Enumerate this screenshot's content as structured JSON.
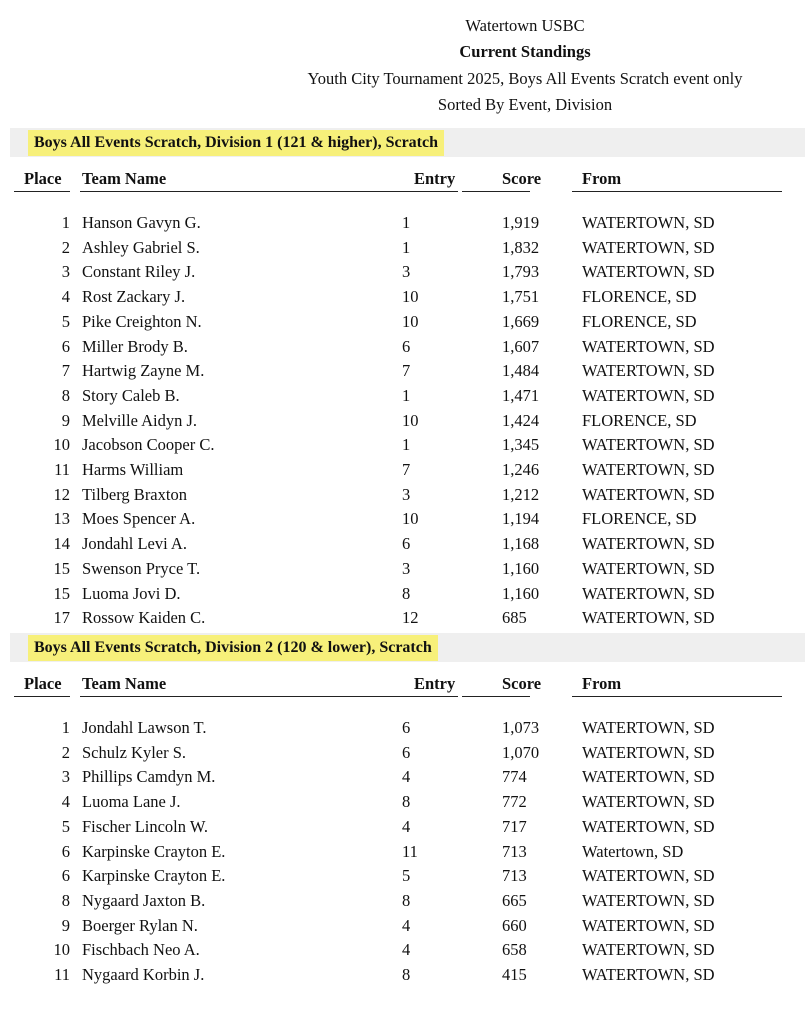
{
  "header": {
    "org": "Watertown USBC",
    "title": "Current Standings",
    "subtitle": "Youth City Tournament 2025, Boys All Events Scratch event only",
    "sort": "Sorted By Event, Division"
  },
  "columns": {
    "place": "Place",
    "name": "Team Name",
    "entry": "Entry",
    "score": "Score",
    "from": "From"
  },
  "divisions": [
    {
      "title": "Boys All Events Scratch, Division 1 (121 & higher), Scratch",
      "rows": [
        [
          "1",
          "Hanson Gavyn G.",
          "1",
          "1,919",
          "WATERTOWN, SD"
        ],
        [
          "2",
          "Ashley Gabriel S.",
          "1",
          "1,832",
          "WATERTOWN, SD"
        ],
        [
          "3",
          "Constant Riley J.",
          "3",
          "1,793",
          "WATERTOWN, SD"
        ],
        [
          "4",
          "Rost Zackary J.",
          "10",
          "1,751",
          "FLORENCE, SD"
        ],
        [
          "5",
          "Pike Creighton N.",
          "10",
          "1,669",
          "FLORENCE, SD"
        ],
        [
          "6",
          "Miller Brody B.",
          "6",
          "1,607",
          "WATERTOWN, SD"
        ],
        [
          "7",
          "Hartwig Zayne M.",
          "7",
          "1,484",
          "WATERTOWN, SD"
        ],
        [
          "8",
          "Story Caleb B.",
          "1",
          "1,471",
          "WATERTOWN, SD"
        ],
        [
          "9",
          "Melville Aidyn J.",
          "10",
          "1,424",
          "FLORENCE, SD"
        ],
        [
          "10",
          "Jacobson Cooper C.",
          "1",
          "1,345",
          "WATERTOWN, SD"
        ],
        [
          "11",
          "Harms William",
          "7",
          "1,246",
          "WATERTOWN, SD"
        ],
        [
          "12",
          "Tilberg Braxton",
          "3",
          "1,212",
          "WATERTOWN, SD"
        ],
        [
          "13",
          "Moes Spencer A.",
          "10",
          "1,194",
          "FLORENCE, SD"
        ],
        [
          "14",
          "Jondahl Levi A.",
          "6",
          "1,168",
          "WATERTOWN, SD"
        ],
        [
          "15",
          "Swenson Pryce T.",
          "3",
          "1,160",
          "WATERTOWN, SD"
        ],
        [
          "15",
          "Luoma Jovi D.",
          "8",
          "1,160",
          "WATERTOWN, SD"
        ],
        [
          "17",
          "Rossow Kaiden C.",
          "12",
          "685",
          "WATERTOWN, SD"
        ]
      ]
    },
    {
      "title": "Boys All Events Scratch, Division 2 (120 & lower), Scratch",
      "rows": [
        [
          "1",
          "Jondahl Lawson T.",
          "6",
          "1,073",
          "WATERTOWN, SD"
        ],
        [
          "2",
          "Schulz Kyler S.",
          "6",
          "1,070",
          "WATERTOWN, SD"
        ],
        [
          "3",
          "Phillips Camdyn M.",
          "4",
          "774",
          "WATERTOWN, SD"
        ],
        [
          "4",
          "Luoma Lane J.",
          "8",
          "772",
          "WATERTOWN, SD"
        ],
        [
          "5",
          "Fischer Lincoln W.",
          "4",
          "717",
          "WATERTOWN, SD"
        ],
        [
          "6",
          "Karpinske Crayton E.",
          "11",
          "713",
          "Watertown, SD"
        ],
        [
          "6",
          "Karpinske Crayton E.",
          "5",
          "713",
          "WATERTOWN, SD"
        ],
        [
          "8",
          "Nygaard Jaxton B.",
          "8",
          "665",
          "WATERTOWN, SD"
        ],
        [
          "9",
          "Boerger Rylan N.",
          "4",
          "660",
          "WATERTOWN, SD"
        ],
        [
          "10",
          "Fischbach Neo A.",
          "4",
          "658",
          "WATERTOWN, SD"
        ],
        [
          "11",
          "Nygaard Korbin J.",
          "8",
          "415",
          "WATERTOWN, SD"
        ]
      ]
    }
  ]
}
